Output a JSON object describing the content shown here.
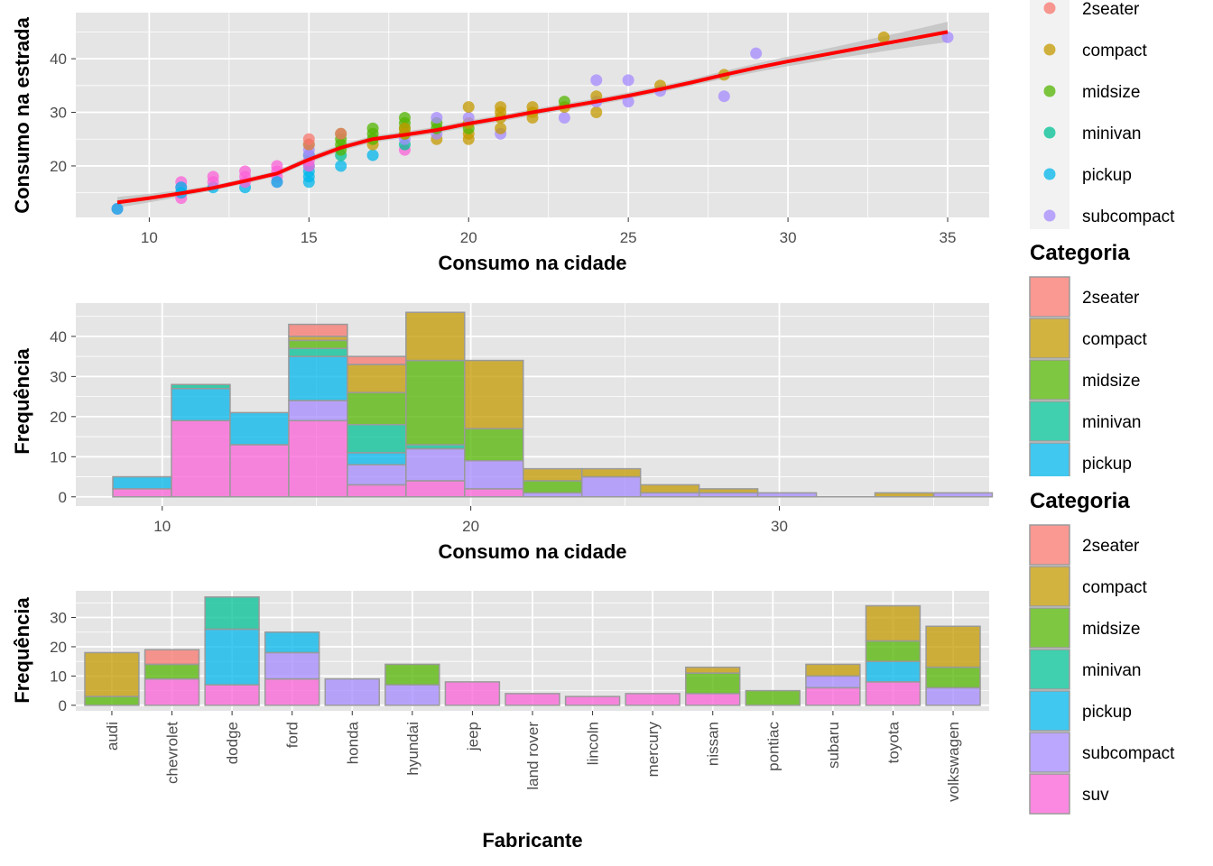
{
  "colors": {
    "panel": "#E5E5E5",
    "grid": "#FFFFFF",
    "smooth_line": "#FF0000",
    "ribbon": "#BDBDBD",
    "bar_outline": "#9A9A9A",
    "categories": {
      "2seater": "#F8766D",
      "compact": "#C49A00",
      "midsize": "#53B400",
      "minivan": "#00C094",
      "pickup": "#00B6EB",
      "subcompact": "#A58AFF",
      "suv": "#FB61D7"
    }
  },
  "chart_data": [
    {
      "type": "scatter",
      "xlabel": "Consumo na cidade",
      "ylabel": "Consumo na estrada",
      "xlim": [
        7.7,
        36.3
      ],
      "ylim": [
        10.4,
        48.6
      ],
      "x_ticks": [
        10,
        15,
        20,
        25,
        30,
        35
      ],
      "y_ticks": [
        20,
        30,
        40
      ],
      "legend": {
        "title": "",
        "position": "right",
        "entries": [
          "2seater",
          "compact",
          "midsize",
          "minivan",
          "pickup",
          "subcompact"
        ]
      },
      "points": [
        {
          "x": 9,
          "y": 12,
          "category": "suv"
        },
        {
          "x": 9,
          "y": 12,
          "category": "pickup"
        },
        {
          "x": 11,
          "y": 14,
          "category": "suv"
        },
        {
          "x": 11,
          "y": 15,
          "category": "suv"
        },
        {
          "x": 11,
          "y": 16,
          "category": "suv"
        },
        {
          "x": 11,
          "y": 17,
          "category": "suv"
        },
        {
          "x": 11,
          "y": 15,
          "category": "pickup"
        },
        {
          "x": 11,
          "y": 16,
          "category": "pickup"
        },
        {
          "x": 12,
          "y": 16,
          "category": "pickup"
        },
        {
          "x": 12,
          "y": 17,
          "category": "suv"
        },
        {
          "x": 12,
          "y": 18,
          "category": "suv"
        },
        {
          "x": 13,
          "y": 16,
          "category": "pickup"
        },
        {
          "x": 13,
          "y": 17,
          "category": "suv"
        },
        {
          "x": 13,
          "y": 18,
          "category": "suv"
        },
        {
          "x": 13,
          "y": 19,
          "category": "suv"
        },
        {
          "x": 14,
          "y": 17,
          "category": "suv"
        },
        {
          "x": 14,
          "y": 18,
          "category": "suv"
        },
        {
          "x": 14,
          "y": 19,
          "category": "suv"
        },
        {
          "x": 14,
          "y": 20,
          "category": "suv"
        },
        {
          "x": 14,
          "y": 17,
          "category": "pickup"
        },
        {
          "x": 15,
          "y": 17,
          "category": "pickup"
        },
        {
          "x": 15,
          "y": 18,
          "category": "pickup"
        },
        {
          "x": 15,
          "y": 19,
          "category": "pickup"
        },
        {
          "x": 15,
          "y": 20,
          "category": "pickup"
        },
        {
          "x": 15,
          "y": 20,
          "category": "suv"
        },
        {
          "x": 15,
          "y": 21,
          "category": "suv"
        },
        {
          "x": 15,
          "y": 22,
          "category": "minivan"
        },
        {
          "x": 15,
          "y": 22,
          "category": "subcompact"
        },
        {
          "x": 15,
          "y": 23,
          "category": "subcompact"
        },
        {
          "x": 15,
          "y": 24,
          "category": "midsize"
        },
        {
          "x": 15,
          "y": 25,
          "category": "2seater"
        },
        {
          "x": 15,
          "y": 24,
          "category": "2seater"
        },
        {
          "x": 16,
          "y": 20,
          "category": "pickup"
        },
        {
          "x": 16,
          "y": 22,
          "category": "minivan"
        },
        {
          "x": 16,
          "y": 23,
          "category": "midsize"
        },
        {
          "x": 16,
          "y": 24,
          "category": "midsize"
        },
        {
          "x": 16,
          "y": 25,
          "category": "midsize"
        },
        {
          "x": 16,
          "y": 26,
          "category": "midsize"
        },
        {
          "x": 16,
          "y": 26,
          "category": "2seater"
        },
        {
          "x": 17,
          "y": 22,
          "category": "pickup"
        },
        {
          "x": 17,
          "y": 24,
          "category": "compact"
        },
        {
          "x": 17,
          "y": 25,
          "category": "midsize"
        },
        {
          "x": 17,
          "y": 26,
          "category": "midsize"
        },
        {
          "x": 17,
          "y": 27,
          "category": "midsize"
        },
        {
          "x": 18,
          "y": 23,
          "category": "suv"
        },
        {
          "x": 18,
          "y": 24,
          "category": "minivan"
        },
        {
          "x": 18,
          "y": 25,
          "category": "subcompact"
        },
        {
          "x": 18,
          "y": 26,
          "category": "midsize"
        },
        {
          "x": 18,
          "y": 27,
          "category": "midsize"
        },
        {
          "x": 18,
          "y": 28,
          "category": "midsize"
        },
        {
          "x": 18,
          "y": 29,
          "category": "midsize"
        },
        {
          "x": 18,
          "y": 26,
          "category": "compact"
        },
        {
          "x": 18,
          "y": 27,
          "category": "compact"
        },
        {
          "x": 19,
          "y": 25,
          "category": "compact"
        },
        {
          "x": 19,
          "y": 26,
          "category": "subcompact"
        },
        {
          "x": 19,
          "y": 27,
          "category": "midsize"
        },
        {
          "x": 19,
          "y": 28,
          "category": "midsize"
        },
        {
          "x": 19,
          "y": 29,
          "category": "subcompact"
        },
        {
          "x": 20,
          "y": 25,
          "category": "compact"
        },
        {
          "x": 20,
          "y": 26,
          "category": "compact"
        },
        {
          "x": 20,
          "y": 27,
          "category": "midsize"
        },
        {
          "x": 20,
          "y": 28,
          "category": "compact"
        },
        {
          "x": 20,
          "y": 29,
          "category": "subcompact"
        },
        {
          "x": 20,
          "y": 31,
          "category": "compact"
        },
        {
          "x": 21,
          "y": 26,
          "category": "subcompact"
        },
        {
          "x": 21,
          "y": 27,
          "category": "compact"
        },
        {
          "x": 21,
          "y": 29,
          "category": "compact"
        },
        {
          "x": 21,
          "y": 30,
          "category": "compact"
        },
        {
          "x": 21,
          "y": 31,
          "category": "compact"
        },
        {
          "x": 22,
          "y": 29,
          "category": "compact"
        },
        {
          "x": 22,
          "y": 30,
          "category": "compact"
        },
        {
          "x": 22,
          "y": 31,
          "category": "compact"
        },
        {
          "x": 23,
          "y": 29,
          "category": "subcompact"
        },
        {
          "x": 23,
          "y": 31,
          "category": "compact"
        },
        {
          "x": 23,
          "y": 32,
          "category": "midsize"
        },
        {
          "x": 24,
          "y": 30,
          "category": "compact"
        },
        {
          "x": 24,
          "y": 32,
          "category": "subcompact"
        },
        {
          "x": 24,
          "y": 33,
          "category": "compact"
        },
        {
          "x": 24,
          "y": 36,
          "category": "subcompact"
        },
        {
          "x": 25,
          "y": 32,
          "category": "subcompact"
        },
        {
          "x": 25,
          "y": 36,
          "category": "subcompact"
        },
        {
          "x": 26,
          "y": 34,
          "category": "subcompact"
        },
        {
          "x": 26,
          "y": 35,
          "category": "compact"
        },
        {
          "x": 28,
          "y": 33,
          "category": "subcompact"
        },
        {
          "x": 28,
          "y": 37,
          "category": "compact"
        },
        {
          "x": 29,
          "y": 41,
          "category": "subcompact"
        },
        {
          "x": 33,
          "y": 44,
          "category": "compact"
        },
        {
          "x": 35,
          "y": 44,
          "category": "subcompact"
        }
      ],
      "smooth": {
        "x": [
          9,
          10,
          11,
          12,
          13,
          14,
          15,
          16,
          17,
          18,
          19,
          20,
          21,
          22,
          23,
          24,
          25,
          26,
          27,
          28,
          29,
          30,
          31,
          32,
          33,
          34,
          35
        ],
        "y": [
          13.2,
          14.0,
          14.9,
          15.9,
          17.2,
          18.6,
          21.2,
          23.4,
          25.0,
          25.8,
          26.7,
          27.9,
          28.9,
          30.0,
          31.0,
          32.0,
          33.1,
          34.3,
          35.6,
          37.0,
          38.3,
          39.5,
          40.6,
          41.7,
          42.8,
          43.9,
          45.0
        ],
        "ribbon_half_width": [
          1.0,
          0.8,
          0.6,
          0.5,
          0.5,
          0.5,
          0.6,
          0.6,
          0.6,
          0.6,
          0.6,
          0.6,
          0.6,
          0.6,
          0.6,
          0.6,
          0.6,
          0.6,
          0.6,
          0.7,
          0.8,
          0.9,
          1.0,
          1.2,
          1.4,
          1.6,
          1.9
        ]
      }
    },
    {
      "type": "bar",
      "stacked": true,
      "xlabel": "Consumo na cidade",
      "ylabel": "Frequência",
      "xlim": [
        7.2,
        36.8
      ],
      "ylim": [
        -2.3,
        48.3
      ],
      "x_ticks": [
        10,
        20,
        30
      ],
      "y_ticks": [
        0,
        10,
        20,
        30,
        40
      ],
      "legend": {
        "title": "Categoria",
        "position": "right",
        "entries": [
          "2seater",
          "compact",
          "midsize",
          "minivan",
          "pickup"
        ]
      },
      "bins": [
        {
          "x0": 8.4,
          "x1": 10.3,
          "stack": {
            "suv": 2,
            "pickup": 3
          }
        },
        {
          "x0": 10.3,
          "x1": 12.2,
          "stack": {
            "suv": 19,
            "pickup": 8,
            "minivan": 1
          }
        },
        {
          "x0": 12.2,
          "x1": 14.1,
          "stack": {
            "suv": 13,
            "pickup": 8
          }
        },
        {
          "x0": 14.1,
          "x1": 16.0,
          "stack": {
            "suv": 19,
            "subcompact": 5,
            "pickup": 11,
            "minivan": 2,
            "midsize": 2,
            "compact": 1,
            "2seater": 3
          }
        },
        {
          "x0": 16.0,
          "x1": 17.9,
          "stack": {
            "suv": 3,
            "subcompact": 5,
            "pickup": 3,
            "minivan": 7,
            "midsize": 8,
            "compact": 7,
            "2seater": 2
          }
        },
        {
          "x0": 17.9,
          "x1": 19.8,
          "stack": {
            "suv": 4,
            "subcompact": 8,
            "minivan": 1,
            "midsize": 21,
            "compact": 12
          }
        },
        {
          "x0": 19.8,
          "x1": 21.7,
          "stack": {
            "suv": 2,
            "subcompact": 7,
            "midsize": 8,
            "compact": 17
          }
        },
        {
          "x0": 21.7,
          "x1": 23.6,
          "stack": {
            "subcompact": 1,
            "midsize": 3,
            "compact": 3
          }
        },
        {
          "x0": 23.6,
          "x1": 25.5,
          "stack": {
            "subcompact": 5,
            "compact": 2
          }
        },
        {
          "x0": 25.5,
          "x1": 27.4,
          "stack": {
            "subcompact": 1,
            "compact": 2
          }
        },
        {
          "x0": 27.4,
          "x1": 29.3,
          "stack": {
            "subcompact": 1,
            "compact": 1
          }
        },
        {
          "x0": 29.3,
          "x1": 31.2,
          "stack": {
            "subcompact": 1
          }
        },
        {
          "x0": 31.2,
          "x1": 33.1,
          "stack": {}
        },
        {
          "x0": 33.1,
          "x1": 35.0,
          "stack": {
            "compact": 1
          }
        },
        {
          "x0": 35.0,
          "x1": 36.9,
          "stack": {
            "subcompact": 1
          }
        }
      ]
    },
    {
      "type": "bar",
      "stacked": true,
      "xlabel": "Fabricante",
      "ylabel": "Frequência",
      "ylim": [
        -1.9,
        39.1
      ],
      "y_ticks": [
        0,
        10,
        20,
        30
      ],
      "categories": [
        "audi",
        "chevrolet",
        "dodge",
        "ford",
        "honda",
        "hyundai",
        "jeep",
        "land rover",
        "lincoln",
        "mercury",
        "nissan",
        "pontiac",
        "subaru",
        "toyota",
        "volkswagen"
      ],
      "stacks": [
        {
          "midsize": 3,
          "compact": 15
        },
        {
          "suv": 9,
          "midsize": 5,
          "2seater": 5
        },
        {
          "suv": 7,
          "pickup": 19,
          "minivan": 11
        },
        {
          "suv": 9,
          "subcompact": 9,
          "pickup": 7
        },
        {
          "subcompact": 9
        },
        {
          "subcompact": 7,
          "midsize": 7
        },
        {
          "suv": 8
        },
        {
          "suv": 4
        },
        {
          "suv": 3
        },
        {
          "suv": 4
        },
        {
          "suv": 4,
          "midsize": 7,
          "compact": 2
        },
        {
          "midsize": 5
        },
        {
          "suv": 6,
          "subcompact": 4,
          "compact": 4
        },
        {
          "suv": 8,
          "pickup": 7,
          "midsize": 7,
          "compact": 12
        },
        {
          "subcompact": 6,
          "midsize": 7,
          "compact": 14
        }
      ],
      "legend": {
        "title": "Categoria",
        "position": "right",
        "entries": [
          "2seater",
          "compact",
          "midsize",
          "minivan",
          "pickup",
          "subcompact",
          "suv"
        ]
      }
    }
  ]
}
